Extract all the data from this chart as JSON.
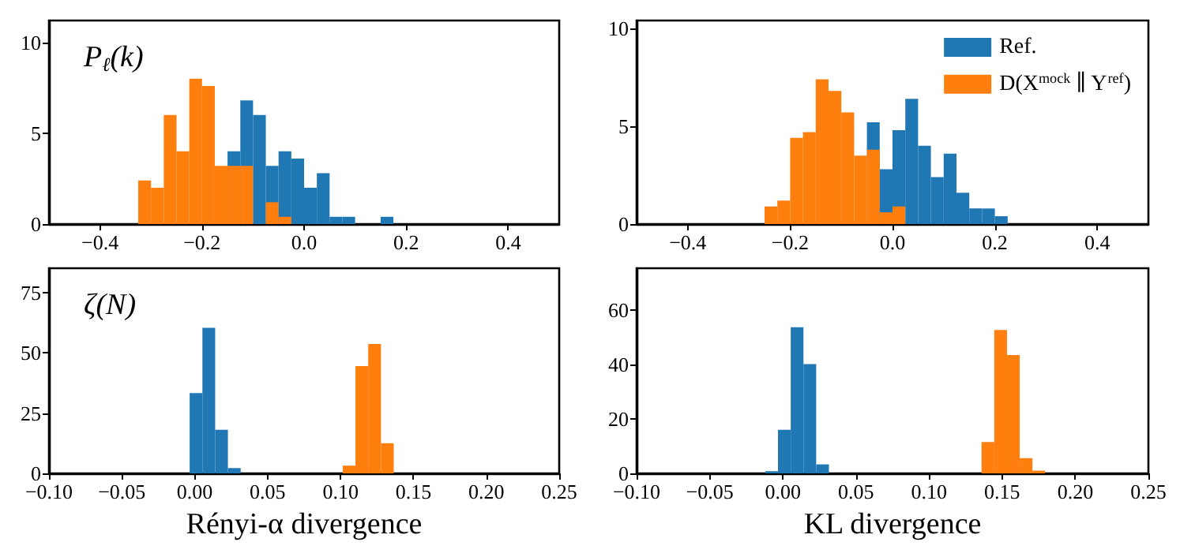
{
  "chart_data": [
    {
      "type": "histogram",
      "annotations": [
        "P$_{ℓ}$(k)"
      ],
      "bins": [
        -0.325,
        -0.3,
        -0.275,
        -0.25,
        -0.225,
        -0.2,
        -0.175,
        -0.15,
        -0.125,
        -0.1,
        -0.075,
        -0.05,
        -0.025,
        0,
        0.025,
        0.05,
        0.075,
        0.1,
        0.125,
        0.15,
        0.175
      ],
      "series": [
        {
          "color": "#1f77b4",
          "values": [
            null,
            null,
            null,
            null,
            null,
            null,
            null,
            4.0,
            6.8,
            6.0,
            3.2,
            4.0,
            3.6,
            2.0,
            2.8,
            0.4,
            0.4,
            0,
            0,
            0.4
          ]
        },
        {
          "color": "#ff7f0e",
          "values": [
            2.4,
            2.0,
            6.0,
            4.0,
            8.0,
            7.6,
            3.2,
            3.2,
            3.2,
            null,
            1.2,
            0.4,
            0,
            0,
            0,
            0,
            0,
            0,
            0,
            0
          ]
        }
      ],
      "xlim": [
        -0.5,
        0.5
      ],
      "xticks": [
        {
          "value": -0.4,
          "label": "−0.4"
        },
        {
          "value": -0.2,
          "label": "−0.2"
        },
        {
          "value": 0,
          "label": "0.0"
        },
        0.2,
        0.4
      ],
      "ylim": [
        0,
        11.2
      ],
      "yticks": [
        0,
        5,
        10
      ]
    },
    {
      "type": "histogram",
      "legend": "top right",
      "bins": [
        -0.25,
        -0.225,
        -0.2,
        -0.175,
        -0.15,
        -0.125,
        -0.1,
        -0.075,
        -0.05,
        -0.025,
        0,
        0.025,
        0.05,
        0.075,
        0.1,
        0.125,
        0.15,
        0.175,
        0.2,
        0.225
      ],
      "series": [
        {
          "name": "Ref.",
          "color": "#1f77b4",
          "values": [
            null,
            null,
            null,
            null,
            null,
            null,
            null,
            null,
            5.2,
            2.8,
            4.8,
            6.4,
            4.0,
            2.4,
            3.6,
            1.6,
            0.8,
            0.8,
            0.4
          ]
        },
        {
          "name": "D(X$^{mock}$ ∥ Y$^{ref}$)",
          "color": "#ff7f0e",
          "values": [
            0.9,
            1.2,
            4.4,
            4.7,
            7.4,
            6.8,
            5.7,
            3.5,
            3.8,
            0.6,
            0.9,
            0,
            0,
            0,
            0,
            0,
            0,
            0,
            0
          ]
        }
      ],
      "xlim": [
        -0.5,
        0.5
      ],
      "xticks": [
        {
          "value": -0.4,
          "label": "−0.4"
        },
        {
          "value": -0.2,
          "label": "−0.2"
        },
        {
          "value": 0,
          "label": "0.0"
        },
        0.2,
        0.4
      ],
      "ylim": [
        0,
        10.4
      ],
      "yticks": [
        0,
        5,
        10
      ]
    },
    {
      "type": "histogram",
      "annotations": [
        "ζ(N)"
      ],
      "xlabel": "Rényi-α divergence",
      "bins": [
        -0.0035,
        0.00525,
        0.014,
        0.02275,
        0.0315,
        0.04025,
        0.049,
        0.05775,
        0.0665,
        0.07525,
        0.084,
        0.09275,
        0.1015,
        0.11025,
        0.119,
        0.12775,
        0.1365
      ],
      "series": [
        {
          "color": "#1f77b4",
          "values": [
            33.3,
            60.3,
            18.1,
            2.2,
            0,
            0,
            0,
            0,
            0,
            0,
            0,
            0,
            0,
            0,
            0,
            0
          ]
        },
        {
          "color": "#ff7f0e",
          "values": [
            0,
            0,
            0,
            0,
            0,
            0,
            0,
            0,
            0,
            0,
            0,
            0,
            3.2,
            44.5,
            53.6,
            12.5
          ]
        }
      ],
      "xlim": [
        -0.1,
        0.25
      ],
      "xticks": [
        {
          "value": -0.1,
          "label": "−0.10"
        },
        {
          "value": -0.05,
          "label": "−0.05"
        },
        {
          "value": 0,
          "label": "0.00"
        },
        0.05,
        {
          "value": 0.1,
          "label": "0.10"
        },
        0.15,
        {
          "value": 0.2,
          "label": "0.20"
        },
        0.25
      ],
      "ylim": [
        0,
        85
      ],
      "yticks": [
        0,
        25,
        50,
        75
      ]
    },
    {
      "type": "histogram",
      "xlabel": "KL divergence",
      "bins": [
        -0.012,
        -0.0033,
        0.0054,
        0.0141,
        0.0228,
        0.0315,
        0.0402,
        0.0489,
        0.0576,
        0.0663,
        0.075,
        0.0837,
        0.0924,
        0.1011,
        0.1098,
        0.1185,
        0.1272,
        0.1359,
        0.1446,
        0.1533,
        0.162,
        0.1707,
        0.1794
      ],
      "series": [
        {
          "color": "#1f77b4",
          "values": [
            0.8,
            16,
            53.7,
            40.2,
            3.3,
            0,
            0,
            0,
            0,
            0,
            0,
            0,
            0,
            0,
            0,
            0,
            0,
            0,
            0,
            0,
            0,
            0
          ]
        },
        {
          "color": "#ff7f0e",
          "values": [
            0,
            0,
            0,
            0,
            0,
            0,
            0,
            0,
            0,
            0,
            0,
            0,
            0,
            0,
            0,
            0,
            0,
            11.5,
            52.7,
            43.5,
            5.6,
            1.0
          ]
        }
      ],
      "xlim": [
        -0.1,
        0.25
      ],
      "xticks": [
        {
          "value": -0.1,
          "label": "−0.10"
        },
        {
          "value": -0.05,
          "label": "−0.05"
        },
        {
          "value": 0,
          "label": "0.00"
        },
        0.05,
        {
          "value": 0.1,
          "label": "0.10"
        },
        0.15,
        {
          "value": 0.2,
          "label": "0.20"
        },
        0.25
      ],
      "ylim": [
        0,
        75.4
      ],
      "yticks": [
        0,
        20,
        40,
        60
      ]
    }
  ]
}
